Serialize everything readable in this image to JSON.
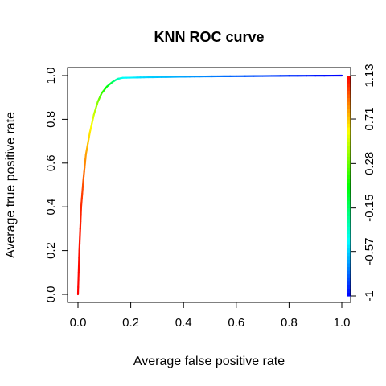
{
  "chart_data": {
    "type": "line",
    "title": "KNN ROC curve",
    "xlabel": "Average false positive rate",
    "ylabel": "Average true positive rate",
    "xlim": [
      0,
      1
    ],
    "ylim": [
      0,
      1
    ],
    "x_ticks": [
      {
        "value": 0.0,
        "label": "0.0"
      },
      {
        "value": 0.2,
        "label": "0.2"
      },
      {
        "value": 0.4,
        "label": "0.4"
      },
      {
        "value": 0.6,
        "label": "0.6"
      },
      {
        "value": 0.8,
        "label": "0.8"
      },
      {
        "value": 1.0,
        "label": "1.0"
      }
    ],
    "y_ticks": [
      {
        "value": 0.0,
        "label": "0.0"
      },
      {
        "value": 0.2,
        "label": "0.2"
      },
      {
        "value": 0.4,
        "label": "0.4"
      },
      {
        "value": 0.6,
        "label": "0.6"
      },
      {
        "value": 0.8,
        "label": "0.8"
      },
      {
        "value": 1.0,
        "label": "1.0"
      }
    ],
    "grid": false,
    "colorbar": {
      "placement": "right",
      "min": -1,
      "max": 1.13,
      "ticks": [
        {
          "value": -1,
          "label": "-1"
        },
        {
          "value": -0.57,
          "label": "-0.57"
        },
        {
          "value": -0.15,
          "label": "-0.15"
        },
        {
          "value": 0.28,
          "label": "0.28"
        },
        {
          "value": 0.71,
          "label": "0.71"
        },
        {
          "value": 1.13,
          "label": "1.13"
        }
      ],
      "colors": [
        "#0000ff",
        "#00ffff",
        "#00ff00",
        "#ffff00",
        "#ff0000"
      ]
    },
    "series": [
      {
        "x": [
          0.0,
          0.005,
          0.012,
          0.02,
          0.03,
          0.045,
          0.06,
          0.075,
          0.09,
          0.11,
          0.13,
          0.15,
          0.17,
          0.25,
          0.35,
          0.46,
          0.6,
          0.8,
          1.0
        ],
        "y": [
          0.0,
          0.2,
          0.4,
          0.52,
          0.64,
          0.74,
          0.82,
          0.88,
          0.92,
          0.95,
          0.97,
          0.985,
          0.99,
          0.992,
          0.994,
          0.996,
          0.997,
          0.999,
          1.0
        ],
        "threshold": [
          1.13,
          1.1,
          1.05,
          0.95,
          0.8,
          0.65,
          0.5,
          0.35,
          0.2,
          0.05,
          -0.1,
          -0.3,
          -0.45,
          -0.55,
          -0.62,
          -0.7,
          -0.8,
          -0.9,
          -1.0
        ]
      }
    ]
  }
}
